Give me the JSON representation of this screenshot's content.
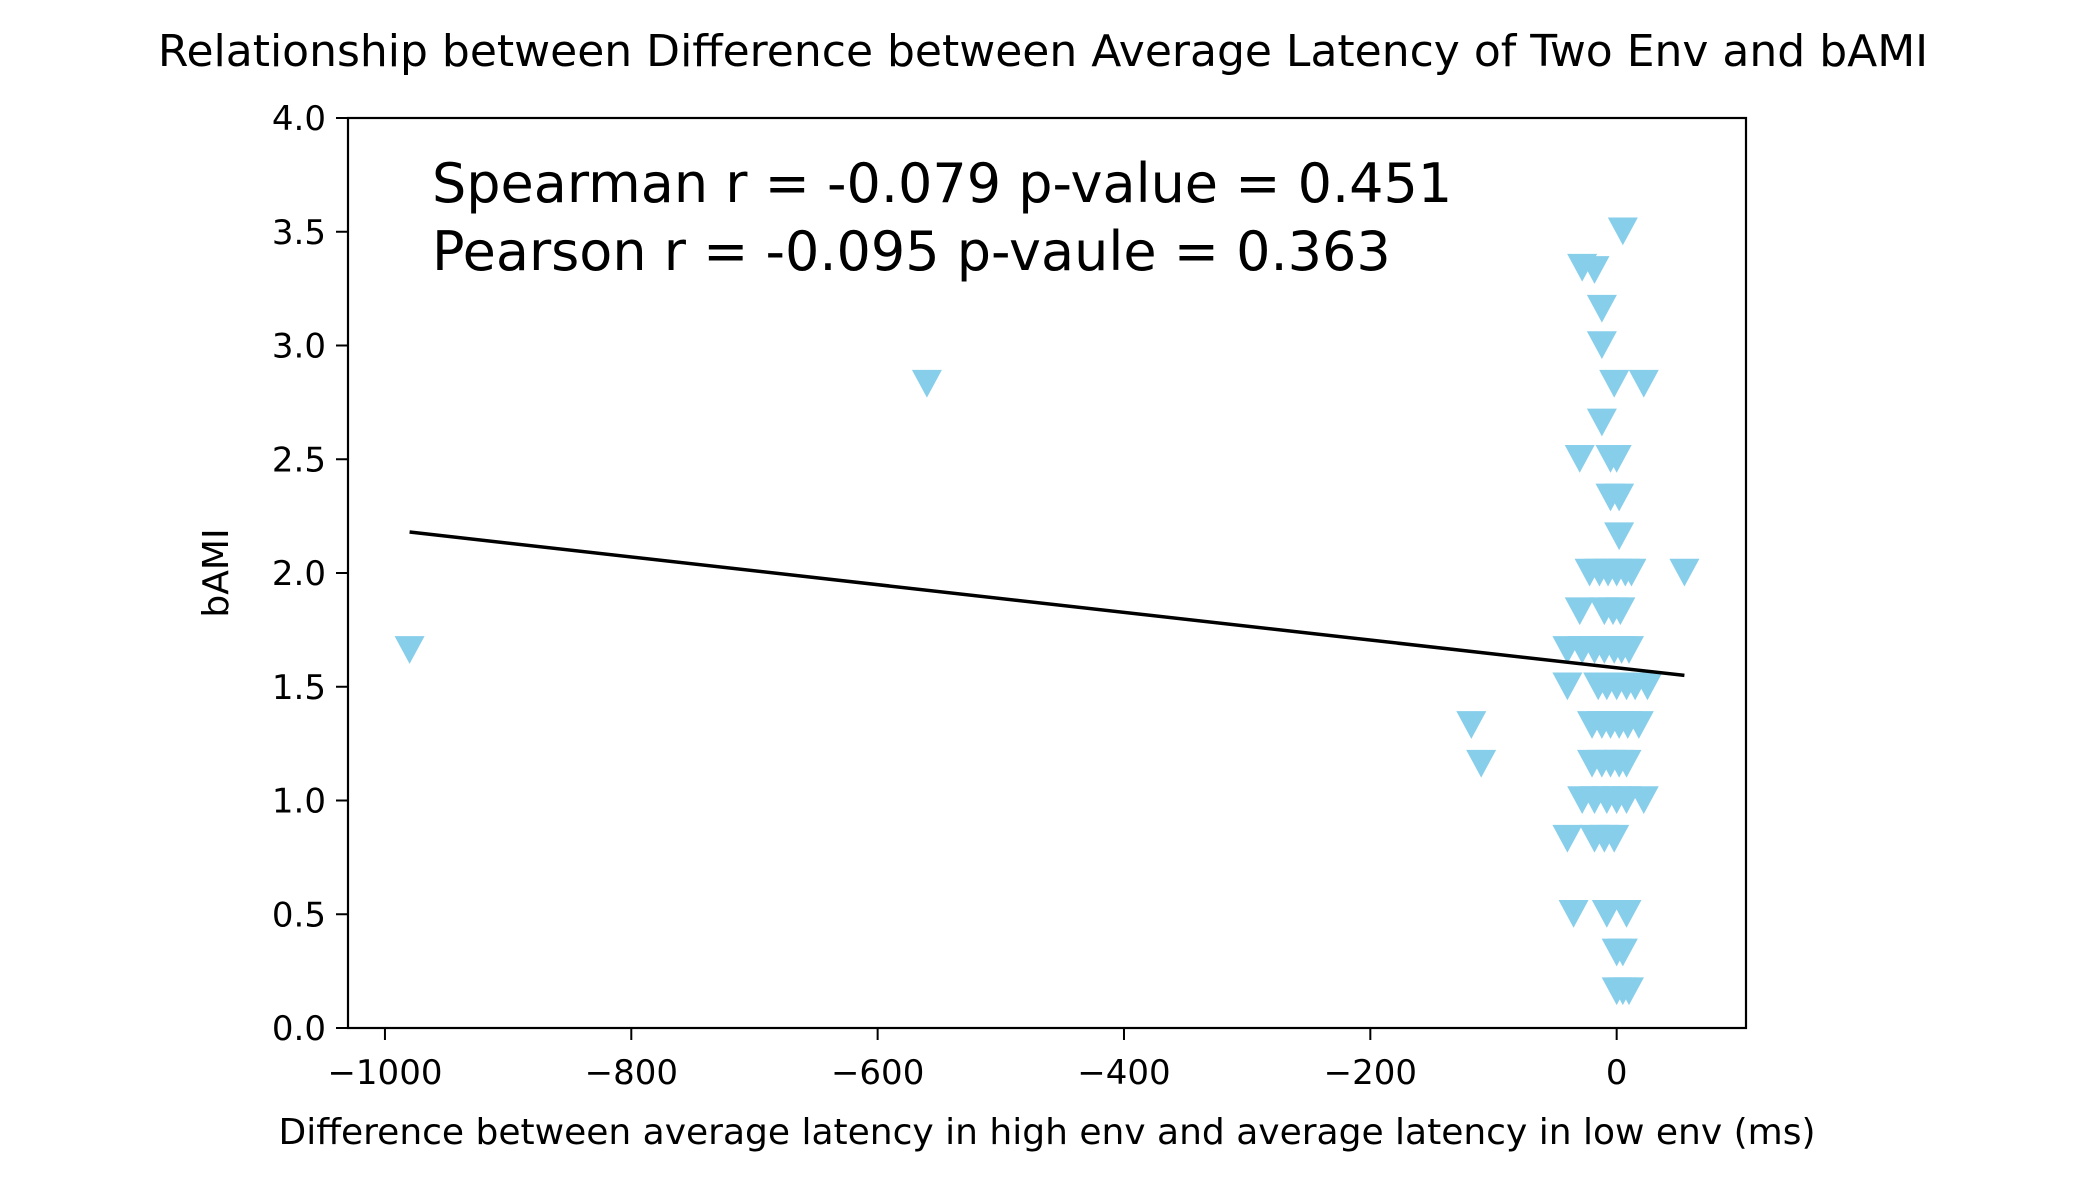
{
  "chart_data": {
    "type": "scatter",
    "title": "Relationship between Difference between Average Latency of Two Env and bAMI",
    "xlabel": "Difference between average latency in high env and average latency in low env (ms)",
    "ylabel": "bAMI",
    "xlim": [
      -1030,
      105
    ],
    "ylim": [
      0.0,
      4.0
    ],
    "xticks": [
      -1000,
      -800,
      -600,
      -400,
      -200,
      0
    ],
    "xtick_labels": [
      "−1000",
      "−800",
      "−600",
      "−400",
      "−200",
      "0"
    ],
    "yticks": [
      0.0,
      0.5,
      1.0,
      1.5,
      2.0,
      2.5,
      3.0,
      3.5,
      4.0
    ],
    "ytick_labels": [
      "0.0",
      "0.5",
      "1.0",
      "1.5",
      "2.0",
      "2.5",
      "3.0",
      "3.5",
      "4.0"
    ],
    "grid": false,
    "legend": "none",
    "marker": "triangle-down",
    "marker_color": "#87ceeb",
    "line_color": "#000000",
    "annotations": [
      "Spearman r = -0.079 p-value = 0.451",
      "Pearson r = -0.095 p-vaule = 0.363"
    ],
    "fit_line": {
      "x": [
        -980,
        55
      ],
      "y": [
        2.18,
        1.55
      ]
    },
    "points": [
      {
        "x": -980,
        "y": 1.67
      },
      {
        "x": -560,
        "y": 2.84
      },
      {
        "x": -118,
        "y": 1.34
      },
      {
        "x": -110,
        "y": 1.17
      },
      {
        "x": 5,
        "y": 3.51
      },
      {
        "x": -28,
        "y": 3.35
      },
      {
        "x": -18,
        "y": 3.34
      },
      {
        "x": -12,
        "y": 3.17
      },
      {
        "x": -12,
        "y": 3.01
      },
      {
        "x": -2,
        "y": 2.84
      },
      {
        "x": 22,
        "y": 2.84
      },
      {
        "x": -12,
        "y": 2.67
      },
      {
        "x": -30,
        "y": 2.51
      },
      {
        "x": -5,
        "y": 2.51
      },
      {
        "x": 0,
        "y": 2.51
      },
      {
        "x": -5,
        "y": 2.34
      },
      {
        "x": 2,
        "y": 2.34
      },
      {
        "x": 2,
        "y": 2.17
      },
      {
        "x": 55,
        "y": 2.01
      },
      {
        "x": -22,
        "y": 2.01
      },
      {
        "x": -14,
        "y": 2.01
      },
      {
        "x": -7,
        "y": 2.01
      },
      {
        "x": 0,
        "y": 2.01
      },
      {
        "x": 7,
        "y": 2.01
      },
      {
        "x": 12,
        "y": 2.01
      },
      {
        "x": -30,
        "y": 1.84
      },
      {
        "x": -10,
        "y": 1.84
      },
      {
        "x": -3,
        "y": 1.84
      },
      {
        "x": 3,
        "y": 1.84
      },
      {
        "x": -40,
        "y": 1.67
      },
      {
        "x": -28,
        "y": 1.67
      },
      {
        "x": -18,
        "y": 1.67
      },
      {
        "x": -10,
        "y": 1.67
      },
      {
        "x": -2,
        "y": 1.67
      },
      {
        "x": 4,
        "y": 1.67
      },
      {
        "x": 10,
        "y": 1.67
      },
      {
        "x": -40,
        "y": 1.51
      },
      {
        "x": -15,
        "y": 1.51
      },
      {
        "x": -8,
        "y": 1.51
      },
      {
        "x": 0,
        "y": 1.51
      },
      {
        "x": 8,
        "y": 1.51
      },
      {
        "x": 15,
        "y": 1.51
      },
      {
        "x": 25,
        "y": 1.51
      },
      {
        "x": -20,
        "y": 1.34
      },
      {
        "x": -12,
        "y": 1.34
      },
      {
        "x": -5,
        "y": 1.34
      },
      {
        "x": 2,
        "y": 1.34
      },
      {
        "x": 9,
        "y": 1.34
      },
      {
        "x": 18,
        "y": 1.34
      },
      {
        "x": -20,
        "y": 1.17
      },
      {
        "x": -12,
        "y": 1.17
      },
      {
        "x": -5,
        "y": 1.17
      },
      {
        "x": 2,
        "y": 1.17
      },
      {
        "x": 8,
        "y": 1.17
      },
      {
        "x": -28,
        "y": 1.01
      },
      {
        "x": -18,
        "y": 1.01
      },
      {
        "x": -8,
        "y": 1.01
      },
      {
        "x": 0,
        "y": 1.01
      },
      {
        "x": 8,
        "y": 1.01
      },
      {
        "x": 22,
        "y": 1.01
      },
      {
        "x": -40,
        "y": 0.84
      },
      {
        "x": -18,
        "y": 0.84
      },
      {
        "x": -10,
        "y": 0.84
      },
      {
        "x": -2,
        "y": 0.84
      },
      {
        "x": -35,
        "y": 0.51
      },
      {
        "x": -8,
        "y": 0.51
      },
      {
        "x": 8,
        "y": 0.51
      },
      {
        "x": 0,
        "y": 0.34
      },
      {
        "x": 5,
        "y": 0.34
      },
      {
        "x": 0,
        "y": 0.17
      },
      {
        "x": 5,
        "y": 0.17
      },
      {
        "x": 10,
        "y": 0.17
      }
    ]
  }
}
